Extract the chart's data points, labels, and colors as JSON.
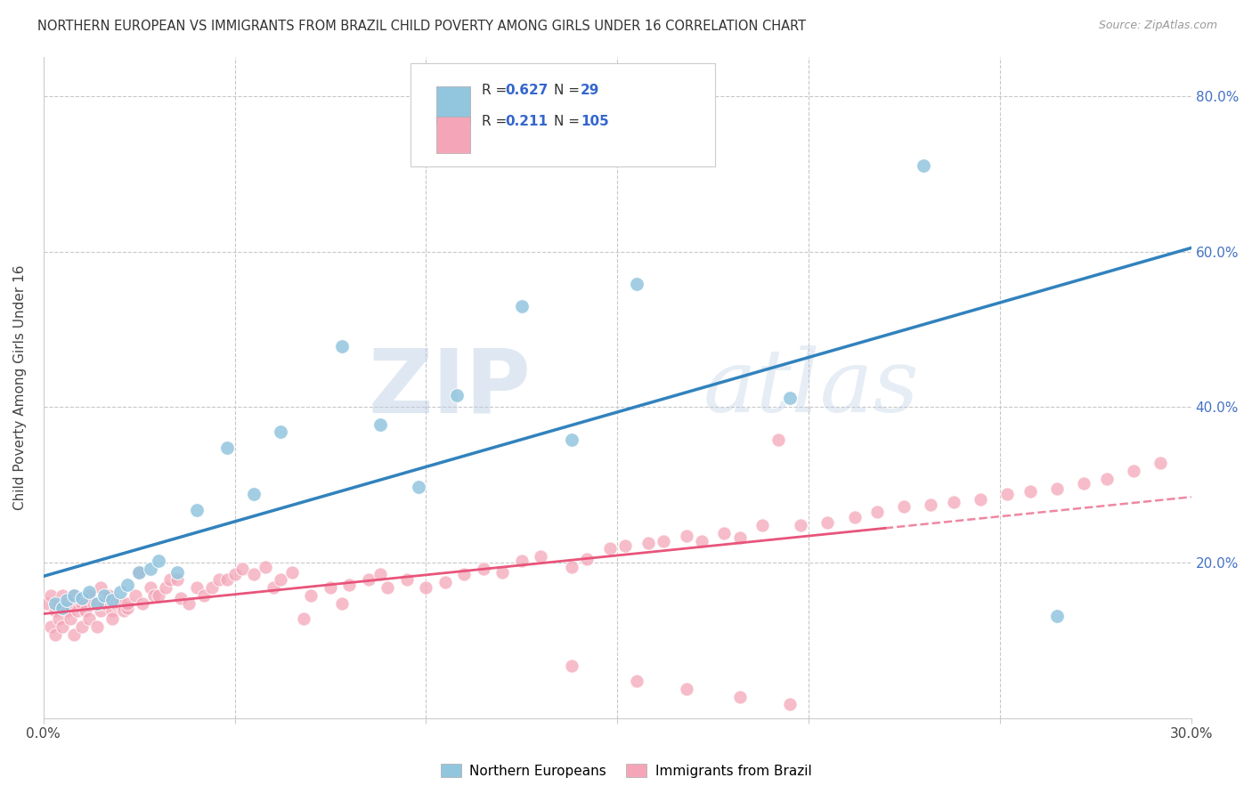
{
  "title": "NORTHERN EUROPEAN VS IMMIGRANTS FROM BRAZIL CHILD POVERTY AMONG GIRLS UNDER 16 CORRELATION CHART",
  "source": "Source: ZipAtlas.com",
  "ylabel": "Child Poverty Among Girls Under 16",
  "xlim": [
    0.0,
    0.3
  ],
  "ylim": [
    0.0,
    0.85
  ],
  "northern_european_R": "0.627",
  "northern_european_N": "29",
  "immigrants_brazil_R": "0.211",
  "immigrants_brazil_N": "105",
  "blue_scatter_color": "#92c5de",
  "blue_line_color": "#3182bd",
  "pink_scatter_color": "#f4a6b8",
  "pink_line_color": "#e8547a",
  "watermark_zip": "ZIP",
  "watermark_atlas": "atlas",
  "ne_x": [
    0.003,
    0.005,
    0.006,
    0.008,
    0.01,
    0.012,
    0.014,
    0.016,
    0.018,
    0.02,
    0.022,
    0.025,
    0.028,
    0.03,
    0.035,
    0.04,
    0.048,
    0.055,
    0.062,
    0.078,
    0.088,
    0.098,
    0.108,
    0.125,
    0.138,
    0.155,
    0.195,
    0.23,
    0.265
  ],
  "ne_y": [
    0.148,
    0.142,
    0.152,
    0.158,
    0.155,
    0.162,
    0.148,
    0.158,
    0.152,
    0.162,
    0.172,
    0.188,
    0.192,
    0.202,
    0.188,
    0.268,
    0.348,
    0.288,
    0.368,
    0.478,
    0.378,
    0.298,
    0.415,
    0.53,
    0.358,
    0.558,
    0.412,
    0.71,
    0.132
  ],
  "br_x": [
    0.001,
    0.002,
    0.002,
    0.003,
    0.003,
    0.004,
    0.004,
    0.005,
    0.005,
    0.006,
    0.006,
    0.007,
    0.007,
    0.008,
    0.008,
    0.009,
    0.01,
    0.01,
    0.011,
    0.012,
    0.012,
    0.013,
    0.014,
    0.015,
    0.015,
    0.016,
    0.017,
    0.018,
    0.018,
    0.019,
    0.02,
    0.021,
    0.022,
    0.022,
    0.024,
    0.025,
    0.026,
    0.028,
    0.029,
    0.03,
    0.032,
    0.033,
    0.035,
    0.036,
    0.038,
    0.04,
    0.042,
    0.044,
    0.046,
    0.048,
    0.05,
    0.052,
    0.055,
    0.058,
    0.06,
    0.062,
    0.065,
    0.068,
    0.07,
    0.075,
    0.078,
    0.08,
    0.085,
    0.088,
    0.09,
    0.095,
    0.1,
    0.105,
    0.11,
    0.115,
    0.12,
    0.125,
    0.13,
    0.138,
    0.142,
    0.148,
    0.152,
    0.158,
    0.162,
    0.168,
    0.172,
    0.178,
    0.182,
    0.188,
    0.192,
    0.198,
    0.205,
    0.212,
    0.218,
    0.225,
    0.232,
    0.238,
    0.245,
    0.252,
    0.258,
    0.265,
    0.272,
    0.278,
    0.285,
    0.292,
    0.138,
    0.155,
    0.168,
    0.182,
    0.195
  ],
  "br_y": [
    0.148,
    0.118,
    0.158,
    0.108,
    0.138,
    0.148,
    0.128,
    0.158,
    0.118,
    0.148,
    0.138,
    0.145,
    0.128,
    0.158,
    0.108,
    0.138,
    0.148,
    0.118,
    0.138,
    0.158,
    0.128,
    0.148,
    0.118,
    0.168,
    0.138,
    0.148,
    0.158,
    0.138,
    0.128,
    0.148,
    0.148,
    0.138,
    0.142,
    0.148,
    0.158,
    0.188,
    0.148,
    0.168,
    0.158,
    0.158,
    0.168,
    0.178,
    0.178,
    0.155,
    0.148,
    0.168,
    0.158,
    0.168,
    0.178,
    0.178,
    0.185,
    0.192,
    0.185,
    0.195,
    0.168,
    0.178,
    0.188,
    0.128,
    0.158,
    0.168,
    0.148,
    0.172,
    0.178,
    0.185,
    0.168,
    0.178,
    0.168,
    0.175,
    0.185,
    0.192,
    0.188,
    0.202,
    0.208,
    0.195,
    0.205,
    0.218,
    0.222,
    0.225,
    0.228,
    0.235,
    0.228,
    0.238,
    0.232,
    0.248,
    0.358,
    0.248,
    0.252,
    0.258,
    0.265,
    0.272,
    0.275,
    0.278,
    0.282,
    0.288,
    0.292,
    0.295,
    0.302,
    0.308,
    0.318,
    0.328,
    0.068,
    0.048,
    0.038,
    0.028,
    0.018
  ]
}
